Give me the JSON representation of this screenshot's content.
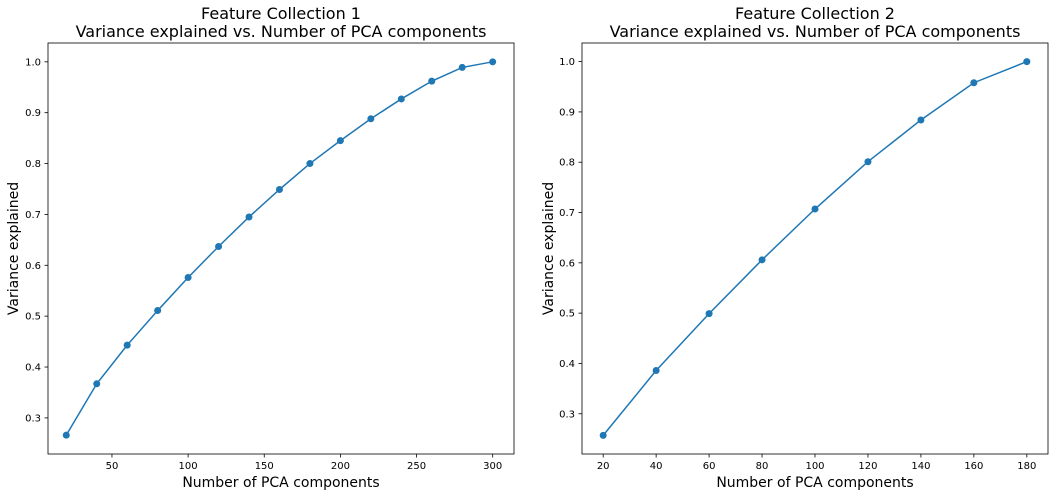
{
  "chart_data": [
    {
      "type": "line",
      "title": "Feature Collection 1",
      "subtitle": "Variance explained vs. Number of PCA components",
      "xlabel": "Number of PCA components",
      "ylabel": "Variance explained",
      "xlim": [
        8,
        314
      ],
      "ylim": [
        0.229,
        1.037
      ],
      "xticks": [
        50,
        100,
        150,
        200,
        250,
        300
      ],
      "yticks": [
        0.3,
        0.4,
        0.5,
        0.6,
        0.7,
        0.8,
        0.9,
        1.0
      ],
      "grid": false,
      "color": "#1f77b4",
      "x": [
        20,
        40,
        60,
        80,
        100,
        120,
        140,
        160,
        180,
        200,
        220,
        240,
        260,
        280,
        300
      ],
      "y": [
        0.266,
        0.367,
        0.443,
        0.511,
        0.576,
        0.637,
        0.695,
        0.749,
        0.8,
        0.845,
        0.888,
        0.927,
        0.962,
        0.989,
        1.0
      ]
    },
    {
      "type": "line",
      "title": "Feature Collection 2",
      "subtitle": "Variance explained vs. Number of PCA components",
      "xlabel": "Number of PCA components",
      "ylabel": "Variance explained",
      "xlim": [
        12,
        188
      ],
      "ylim": [
        0.22,
        1.037
      ],
      "xticks": [
        20,
        40,
        60,
        80,
        100,
        120,
        140,
        160,
        180
      ],
      "yticks": [
        0.3,
        0.4,
        0.5,
        0.6,
        0.7,
        0.8,
        0.9,
        1.0
      ],
      "grid": false,
      "color": "#1f77b4",
      "x": [
        20,
        40,
        60,
        80,
        100,
        120,
        140,
        160,
        180
      ],
      "y": [
        0.257,
        0.386,
        0.499,
        0.606,
        0.707,
        0.801,
        0.884,
        0.958,
        1.0
      ]
    }
  ]
}
